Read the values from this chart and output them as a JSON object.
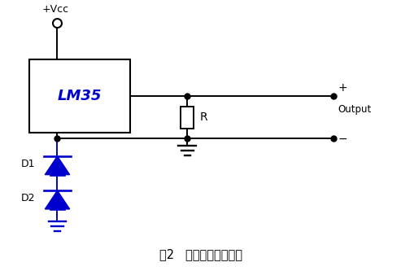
{
  "title": "图2   传感器电路原理图",
  "lm35_label": "LM35",
  "vcc_label": "+Vcc",
  "output_plus": "+",
  "output_label": "Output",
  "output_minus": "−",
  "d1_label": "D1",
  "d2_label": "D2",
  "r_label": "R",
  "line_color": "#000000",
  "blue_color": "#0000CD",
  "background": "#ffffff",
  "title_fontsize": 10.5
}
